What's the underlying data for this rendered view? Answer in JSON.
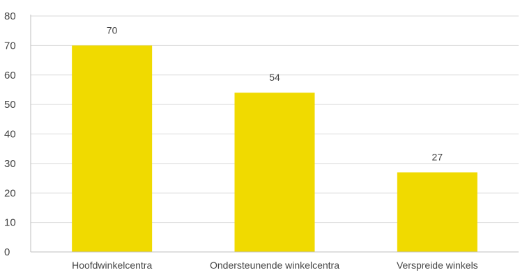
{
  "chart_data": {
    "type": "bar",
    "title": "",
    "xlabel": "",
    "ylabel": "",
    "categories": [
      "Hoofdwinkelcentra",
      "Ondersteunende winkelcentra",
      "Verspreide winkels"
    ],
    "values": [
      70,
      54,
      27
    ],
    "data_labels": [
      "70",
      "54",
      "27"
    ],
    "ylim": [
      0,
      80
    ],
    "yticks": [
      0,
      10,
      20,
      30,
      40,
      50,
      60,
      70,
      80
    ],
    "ytick_labels": [
      "0",
      "10",
      "20",
      "30",
      "40",
      "50",
      "60",
      "70",
      "80"
    ],
    "grid": true,
    "legend": "none",
    "colors": {
      "bar": "#F0DA00",
      "grid": "#D9D9D9",
      "axis": "#BFBFBF",
      "text": "#444444"
    }
  }
}
